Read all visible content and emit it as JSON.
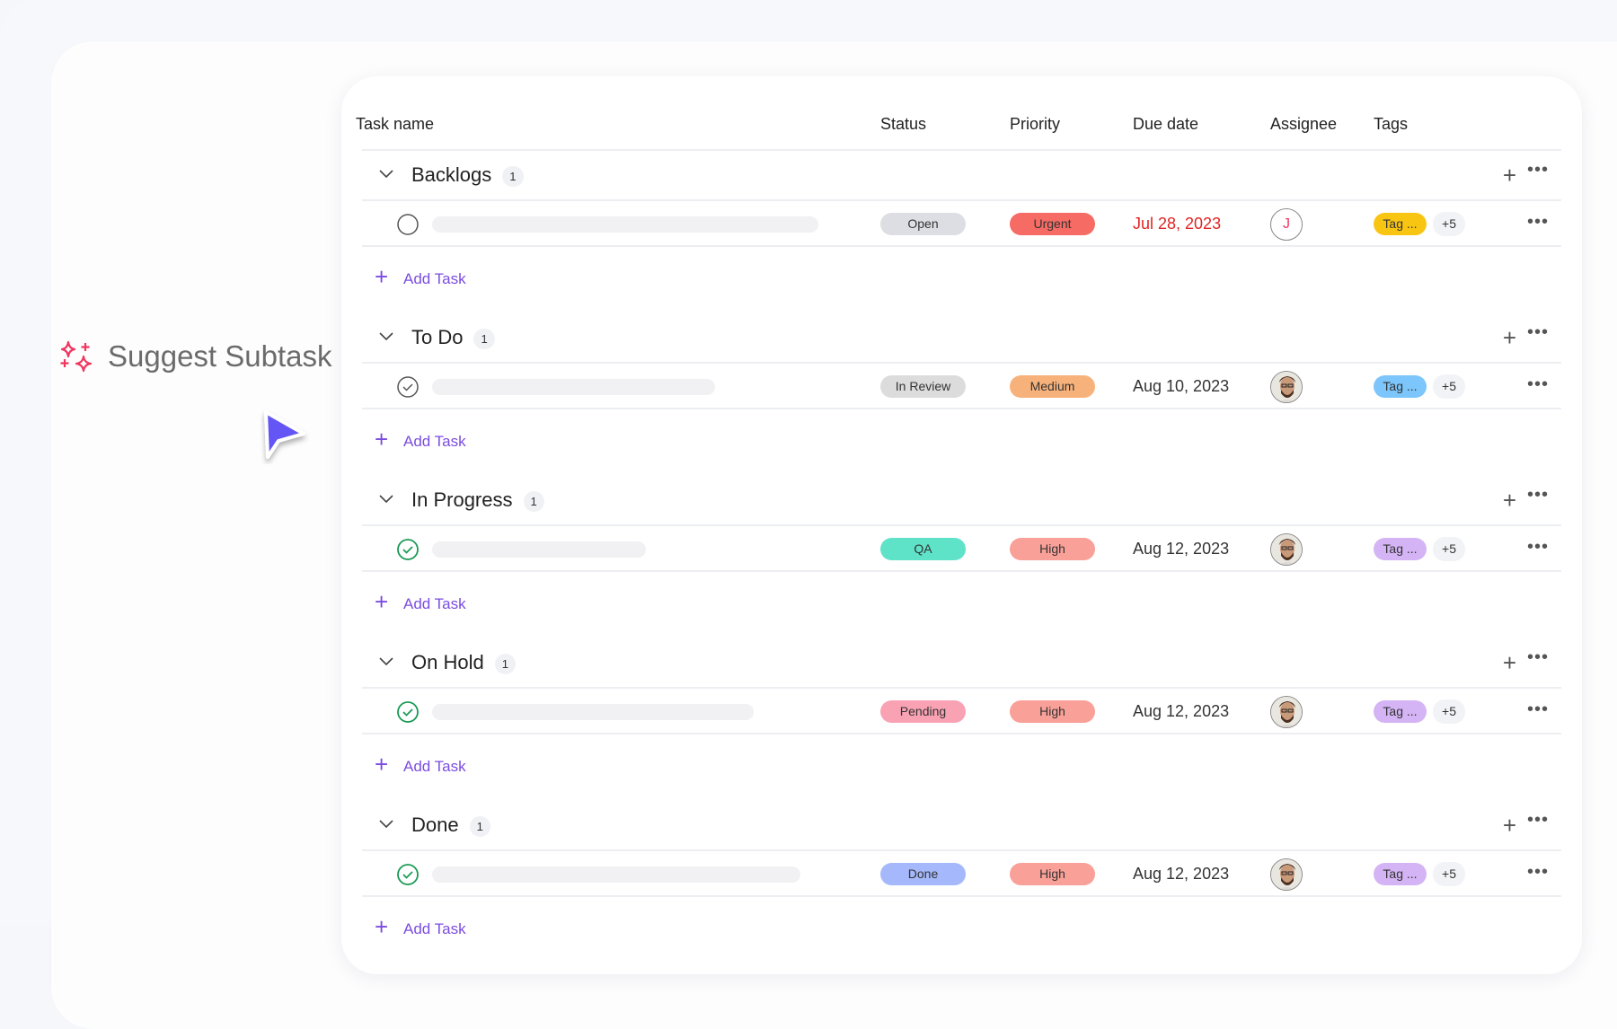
{
  "suggest": {
    "label": "Suggest Subtask",
    "icon": "sparkles-icon",
    "accent": "#f0365f"
  },
  "columns": [
    "Task name",
    "Status",
    "Priority",
    "Due date",
    "Assignee",
    "Tags"
  ],
  "add_task_label": "Add Task",
  "groups": [
    {
      "name": "Backlogs",
      "count": "1",
      "task": {
        "check": "empty",
        "bar": 430,
        "status": "Open",
        "status_color": "#dcdee3",
        "priority": "Urgent",
        "priority_color": "#f66b64",
        "due": "Jul 28, 2023",
        "due_color": "#e02424",
        "assignee": "J",
        "assignee_photo": false,
        "tag": "Tag ...",
        "tag_color": "#f9c513",
        "more": "+5"
      }
    },
    {
      "name": "To Do",
      "count": "1",
      "task": {
        "check": "gray",
        "bar": 315,
        "status": "In Review",
        "status_color": "#dcdcdc",
        "priority": "Medium",
        "priority_color": "#f7b27b",
        "due": "Aug 10, 2023",
        "due_color": "#333333",
        "assignee": "",
        "assignee_photo": true,
        "tag": "Tag ...",
        "tag_color": "#7cc6fb",
        "more": "+5"
      }
    },
    {
      "name": "In Progress",
      "count": "1",
      "task": {
        "check": "green",
        "bar": 238,
        "status": "QA",
        "status_color": "#5ee3c9",
        "priority": "High",
        "priority_color": "#f9a098",
        "due": "Aug 12, 2023",
        "due_color": "#333333",
        "assignee": "",
        "assignee_photo": true,
        "tag": "Tag ...",
        "tag_color": "#d4b4f4",
        "more": "+5"
      }
    },
    {
      "name": "On Hold",
      "count": "1",
      "task": {
        "check": "green",
        "bar": 358,
        "status": "Pending",
        "status_color": "#f9a2b4",
        "priority": "High",
        "priority_color": "#f9a098",
        "due": "Aug 12, 2023",
        "due_color": "#333333",
        "assignee": "",
        "assignee_photo": true,
        "tag": "Tag ...",
        "tag_color": "#d4b4f4",
        "more": "+5"
      }
    },
    {
      "name": "Done",
      "count": "1",
      "task": {
        "check": "green",
        "bar": 410,
        "status": "Done",
        "status_color": "#a5b8fb",
        "priority": "High",
        "priority_color": "#f9a098",
        "due": "Aug 12, 2023",
        "due_color": "#333333",
        "assignee": "",
        "assignee_photo": true,
        "tag": "Tag ...",
        "tag_color": "#d4b4f4",
        "more": "+5"
      }
    }
  ]
}
